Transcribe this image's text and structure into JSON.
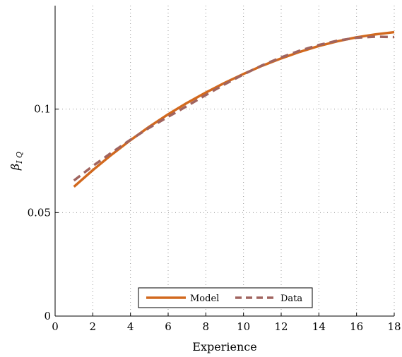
{
  "chart_data": {
    "type": "line",
    "xlabel": "Experience",
    "ylabel": "βIQ",
    "ylabel_parts": {
      "symbol": "β",
      "subscript": "I Q"
    },
    "xlim": [
      0,
      18
    ],
    "ylim": [
      0,
      0.15
    ],
    "xticks": [
      0,
      2,
      4,
      6,
      8,
      10,
      12,
      14,
      16,
      18
    ],
    "xtick_labels": [
      "0",
      "2",
      "4",
      "6",
      "8",
      "10",
      "12",
      "14",
      "16",
      "18"
    ],
    "yticks": [
      0,
      0.05,
      0.1
    ],
    "ytick_labels": [
      "0",
      "0.05",
      "0.1"
    ],
    "grid": true,
    "legend_position": "bottom-center",
    "series": [
      {
        "name": "Model",
        "style": "solid",
        "color": "#D2691E",
        "x": [
          1,
          2,
          3,
          4,
          5,
          6,
          7,
          8,
          9,
          10,
          11,
          12,
          13,
          14,
          15,
          16,
          17,
          18
        ],
        "y": [
          0.0625,
          0.0705,
          0.078,
          0.085,
          0.0915,
          0.0975,
          0.103,
          0.108,
          0.1127,
          0.117,
          0.121,
          0.1245,
          0.1277,
          0.1305,
          0.1328,
          0.1347,
          0.1361,
          0.1372
        ]
      },
      {
        "name": "Data",
        "style": "dashed",
        "color": "#A0645F",
        "x": [
          1,
          2,
          3,
          4,
          5,
          6,
          7,
          8,
          9,
          10,
          11,
          12,
          13,
          14,
          15,
          16,
          17,
          18
        ],
        "y": [
          0.0655,
          0.0725,
          0.079,
          0.0852,
          0.091,
          0.0963,
          0.1015,
          0.1068,
          0.112,
          0.1168,
          0.1212,
          0.125,
          0.1283,
          0.131,
          0.1331,
          0.1345,
          0.135,
          0.1348
        ]
      }
    ]
  }
}
